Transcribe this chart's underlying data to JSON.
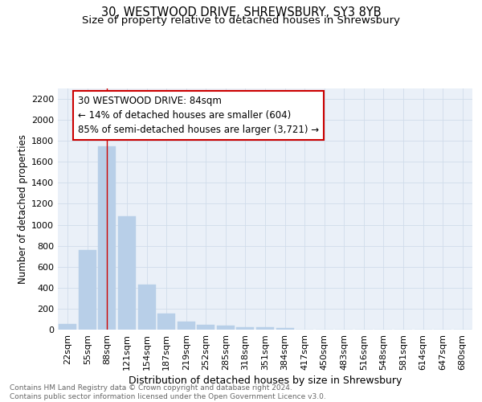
{
  "title": "30, WESTWOOD DRIVE, SHREWSBURY, SY3 8YB",
  "subtitle": "Size of property relative to detached houses in Shrewsbury",
  "xlabel": "Distribution of detached houses by size in Shrewsbury",
  "ylabel": "Number of detached properties",
  "bar_color": "#b8cfe8",
  "bar_edge_color": "#b8cfe8",
  "categories": [
    "22sqm",
    "55sqm",
    "88sqm",
    "121sqm",
    "154sqm",
    "187sqm",
    "219sqm",
    "252sqm",
    "285sqm",
    "318sqm",
    "351sqm",
    "384sqm",
    "417sqm",
    "450sqm",
    "483sqm",
    "516sqm",
    "548sqm",
    "581sqm",
    "614sqm",
    "647sqm",
    "680sqm"
  ],
  "values": [
    55,
    760,
    1745,
    1080,
    430,
    155,
    80,
    45,
    35,
    25,
    20,
    18,
    0,
    0,
    0,
    0,
    0,
    0,
    0,
    0,
    0
  ],
  "vline_x_index": 2,
  "vline_color": "#cc0000",
  "ylim": [
    0,
    2300
  ],
  "yticks": [
    0,
    200,
    400,
    600,
    800,
    1000,
    1200,
    1400,
    1600,
    1800,
    2000,
    2200
  ],
  "annotation_line1": "30 WESTWOOD DRIVE: 84sqm",
  "annotation_line2": "← 14% of detached houses are smaller (604)",
  "annotation_line3": "85% of semi-detached houses are larger (3,721) →",
  "annotation_box_color": "#ffffff",
  "annotation_border_color": "#cc0000",
  "grid_color": "#d0dcea",
  "bg_color": "#eaf0f8",
  "footer_text": "Contains HM Land Registry data © Crown copyright and database right 2024.\nContains public sector information licensed under the Open Government Licence v3.0.",
  "title_fontsize": 10.5,
  "subtitle_fontsize": 9.5,
  "xlabel_fontsize": 9,
  "ylabel_fontsize": 8.5,
  "tick_fontsize": 8,
  "annotation_fontsize": 8.5,
  "footer_fontsize": 6.5
}
